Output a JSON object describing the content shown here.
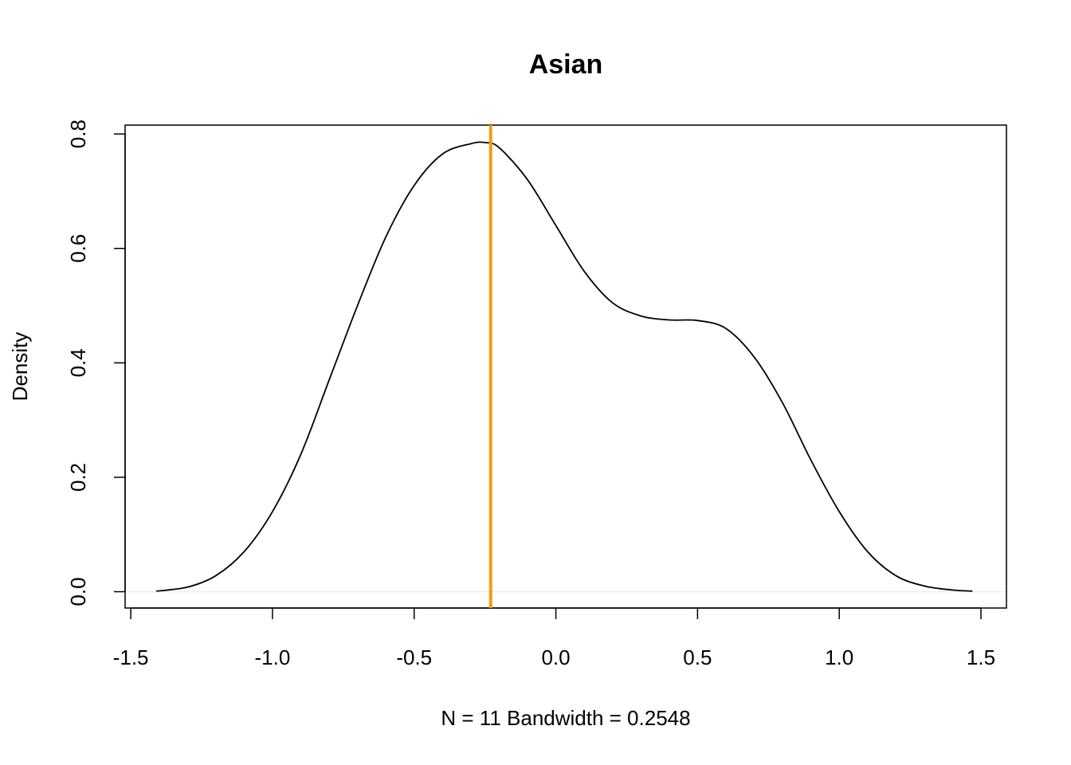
{
  "chart_data": {
    "type": "line",
    "title": "Asian",
    "xlabel": "N = 11   Bandwidth = 0.2548",
    "ylabel": "Density",
    "xlim": [
      -1.52,
      1.59
    ],
    "ylim": [
      -0.0285,
      0.8155
    ],
    "x_ticks": [
      "-1.5",
      "-1.0",
      "-0.5",
      "0.0",
      "0.5",
      "1.0",
      "1.5"
    ],
    "y_ticks": [
      "0.0",
      "0.2",
      "0.4",
      "0.6",
      "0.8"
    ],
    "grid": false,
    "legend": "none",
    "series": [
      {
        "color": "#000000",
        "x": [
          -1.41,
          -1.3,
          -1.2,
          -1.1,
          -1.0,
          -0.9,
          -0.8,
          -0.7,
          -0.6,
          -0.5,
          -0.4,
          -0.3,
          -0.25,
          -0.2,
          -0.1,
          0.0,
          0.1,
          0.2,
          0.3,
          0.4,
          0.5,
          0.6,
          0.7,
          0.8,
          0.9,
          1.0,
          1.1,
          1.2,
          1.3,
          1.4,
          1.47
        ],
        "y": [
          0.001,
          0.008,
          0.028,
          0.07,
          0.14,
          0.24,
          0.37,
          0.5,
          0.62,
          0.71,
          0.765,
          0.783,
          0.785,
          0.776,
          0.72,
          0.64,
          0.56,
          0.505,
          0.482,
          0.475,
          0.474,
          0.46,
          0.41,
          0.33,
          0.23,
          0.14,
          0.07,
          0.028,
          0.01,
          0.003,
          0.001
        ]
      }
    ],
    "annotations": [
      {
        "type": "vline",
        "x": -0.23,
        "color": "#f39c12"
      }
    ]
  }
}
